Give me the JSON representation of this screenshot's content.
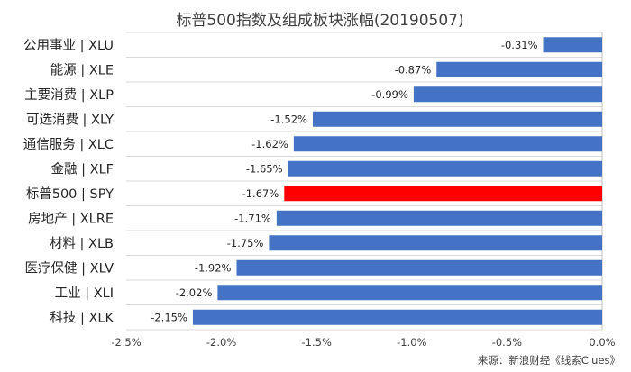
{
  "chart_data": {
    "type": "bar",
    "orientation": "horizontal",
    "title": "标普500指数及组成板块涨幅(20190507)",
    "categories": [
      "公用事业 | XLU",
      "能源 | XLE",
      "主要消费 | XLP",
      "可选消费 | XLY",
      "通信服务 | XLC",
      "金融 | XLF",
      "标普500 | SPY",
      "房地产 | XLRE",
      "材料 | XLB",
      "医疗保健 | XLV",
      "工业 | XLI",
      "科技 | XLK"
    ],
    "values": [
      -0.31,
      -0.87,
      -0.99,
      -1.52,
      -1.62,
      -1.65,
      -1.67,
      -1.71,
      -1.75,
      -1.92,
      -2.02,
      -2.15
    ],
    "value_labels": [
      "-0.31%",
      "-0.87%",
      "-0.99%",
      "-1.52%",
      "-1.62%",
      "-1.65%",
      "-1.67%",
      "-1.71%",
      "-1.75%",
      "-1.92%",
      "-2.02%",
      "-2.15%"
    ],
    "xlim": [
      -2.5,
      0.0
    ],
    "xticks": [
      -2.5,
      -2.0,
      -1.5,
      -1.0,
      -0.5,
      0.0
    ],
    "xtick_labels": [
      "-2.5%",
      "-2.0%",
      "-1.5%",
      "-1.0%",
      "-0.5%",
      "0.0%"
    ],
    "xlabel": "",
    "ylabel": "",
    "grid": "horizontal",
    "colors": {
      "bar": "#4472c4",
      "highlight": "#ff0000"
    },
    "highlight_category": "标普500 | SPY",
    "source": "来源：新浪财经《线索Clues》"
  }
}
